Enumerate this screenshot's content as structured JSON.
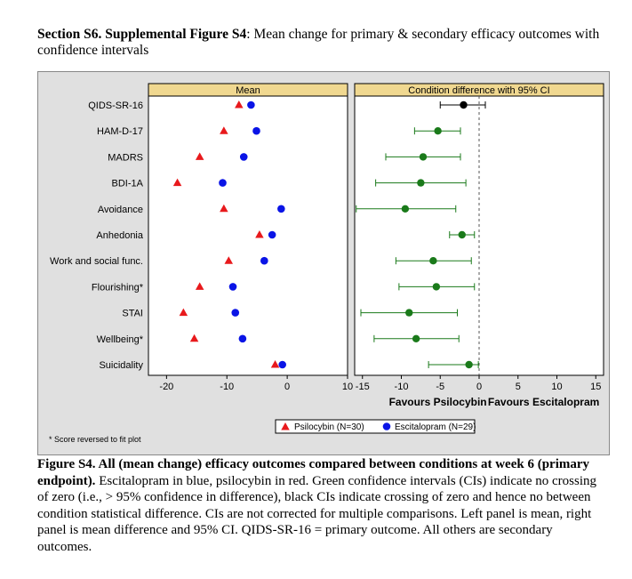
{
  "title": {
    "bold": "Section S6. Supplemental Figure S4",
    "rest": ": Mean change for primary & secondary efficacy outcomes with confidence intervals"
  },
  "caption": {
    "bold": "Figure S4. All (mean change) efficacy outcomes compared between conditions at week 6 (primary endpoint).",
    "rest": " Escitalopram in blue, psilocybin in red. Green confidence intervals (CIs) indicate no crossing of zero (i.e., > 95% confidence in difference), black CIs indicate crossing of zero and hence no between condition statistical difference. CIs are not corrected for multiple comparisons. Left panel is mean, right panel is mean difference and 95% CI. QIDS-SR-16 = primary outcome. All others are secondary outcomes."
  },
  "footnote": "* Score reversed to fit plot",
  "colors": {
    "psilocybin": "#e8191c",
    "escitalopram": "#0a14e6",
    "ci_significant": "#1a7a1a",
    "ci_nonsignificant": "#000000",
    "panel_header": "#f0d890",
    "background": "#e0e0e0"
  },
  "chart_data": [
    {
      "type": "scatter",
      "panel_header": "Mean",
      "categories": [
        "QIDS-SR-16",
        "HAM-D-17",
        "MADRS",
        "BDI-1A",
        "Avoidance",
        "Anhedonia",
        "Work and social func.",
        "Flourishing*",
        "STAI",
        "Wellbeing*",
        "Suicidality"
      ],
      "series": [
        {
          "name": "Psilocybin (N=30)",
          "marker": "triangle",
          "color": "#e8191c",
          "values": [
            -8.0,
            -10.5,
            -14.5,
            -18.2,
            -10.5,
            -4.6,
            -9.7,
            -14.5,
            -17.2,
            -15.4,
            -2.0
          ]
        },
        {
          "name": "Escitalopram (N=29)",
          "marker": "circle",
          "color": "#0a14e6",
          "values": [
            -6.0,
            -5.1,
            -7.2,
            -10.7,
            -1.0,
            -2.5,
            -3.8,
            -9.0,
            -8.6,
            -7.4,
            -0.8
          ]
        }
      ],
      "xlim": [
        -23,
        10
      ],
      "xticks": [
        -20,
        -10,
        0,
        10
      ]
    },
    {
      "type": "scatter",
      "panel_header": "Condition difference with 95% CI",
      "categories": [
        "QIDS-SR-16",
        "HAM-D-17",
        "MADRS",
        "BDI-1A",
        "Avoidance",
        "Anhedonia",
        "Work and social func.",
        "Flourishing*",
        "STAI",
        "Wellbeing*",
        "Suicidality"
      ],
      "estimates": [
        -2.0,
        -5.3,
        -7.2,
        -7.5,
        -9.5,
        -2.2,
        -5.9,
        -5.5,
        -9.0,
        -8.1,
        -1.3
      ],
      "ci_low": [
        -5.0,
        -8.3,
        -12.0,
        -13.3,
        -15.8,
        -3.8,
        -10.7,
        -10.3,
        -15.2,
        -13.5,
        -6.5
      ],
      "ci_high": [
        0.8,
        -2.4,
        -2.4,
        -1.7,
        -3.0,
        -0.6,
        -1.0,
        -0.6,
        -2.8,
        -2.6,
        -0.1
      ],
      "significant": [
        false,
        true,
        true,
        true,
        true,
        true,
        true,
        true,
        true,
        true,
        true
      ],
      "xlim": [
        -16,
        16
      ],
      "xticks": [
        -15,
        -10,
        -5,
        0,
        5,
        10,
        15
      ],
      "reference_line": 0,
      "favours_left": "Favours Psilocybin",
      "favours_right": "Favours Escitalopram"
    }
  ],
  "legend": [
    {
      "label": "Psilocybin (N=30)",
      "marker": "triangle"
    },
    {
      "label": "Escitalopram (N=29)",
      "marker": "circle"
    }
  ]
}
